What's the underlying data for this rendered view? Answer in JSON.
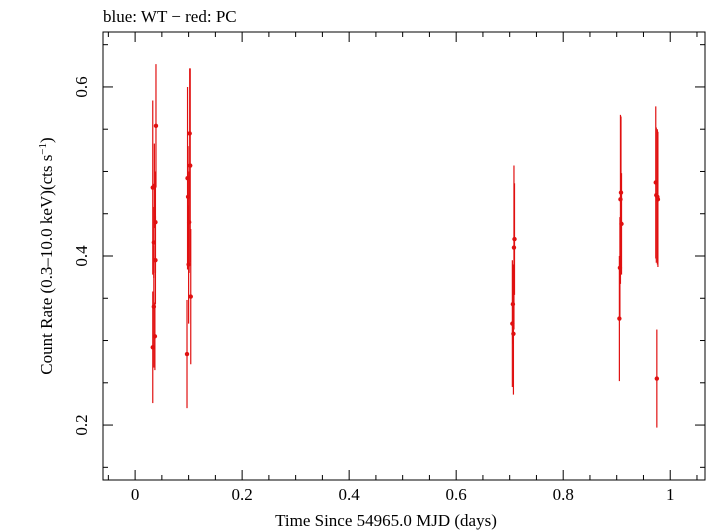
{
  "chart_data": {
    "type": "scatter",
    "title": "blue: WT − red: PC",
    "xlabel": "Time Since 54965.0 MJD (days)",
    "ylabel_main": "Count Rate (0.3–10.0 keV)(cts s",
    "ylabel_sup": "−1",
    "ylabel_close": ")",
    "xlim": [
      -0.06,
      1.065
    ],
    "ylim": [
      0.135,
      0.665
    ],
    "x_ticks": [
      0,
      0.2,
      0.4,
      0.6,
      0.8,
      1
    ],
    "x_tick_labels": [
      "0",
      "0.2",
      "0.4",
      "0.6",
      "0.8",
      "1"
    ],
    "y_ticks": [
      0.2,
      0.4,
      0.6
    ],
    "y_tick_labels": [
      "0.2",
      "0.4",
      "0.6"
    ],
    "x_minor_step": 0.05,
    "y_minor_step": 0.05,
    "grid": false,
    "colors": {
      "WT": "#0000ff",
      "PC": "#e01010",
      "axes": "#000000"
    },
    "series": [
      {
        "name": "PC",
        "points": [
          {
            "x": 0.033,
            "y": 0.292,
            "yerr": 0.066
          },
          {
            "x": 0.033,
            "y": 0.481,
            "yerr": 0.103
          },
          {
            "x": 0.035,
            "y": 0.34,
            "yerr": 0.072
          },
          {
            "x": 0.035,
            "y": 0.416,
            "yerr": 0.042
          },
          {
            "x": 0.036,
            "y": 0.483,
            "yerr": 0.05
          },
          {
            "x": 0.037,
            "y": 0.305,
            "yerr": 0.04
          },
          {
            "x": 0.038,
            "y": 0.44,
            "yerr": 0.06
          },
          {
            "x": 0.038,
            "y": 0.395,
            "yerr": 0.052
          },
          {
            "x": 0.039,
            "y": 0.554,
            "yerr": 0.073
          },
          {
            "x": 0.097,
            "y": 0.284,
            "yerr": 0.064
          },
          {
            "x": 0.098,
            "y": 0.492,
            "yerr": 0.108
          },
          {
            "x": 0.099,
            "y": 0.47,
            "yerr": 0.06
          },
          {
            "x": 0.1,
            "y": 0.39,
            "yerr": 0.07
          },
          {
            "x": 0.101,
            "y": 0.44,
            "yerr": 0.06
          },
          {
            "x": 0.102,
            "y": 0.545,
            "yerr": 0.077
          },
          {
            "x": 0.103,
            "y": 0.507,
            "yerr": 0.115
          },
          {
            "x": 0.104,
            "y": 0.352,
            "yerr": 0.08
          },
          {
            "x": 0.705,
            "y": 0.32,
            "yerr": 0.075
          },
          {
            "x": 0.706,
            "y": 0.343,
            "yerr": 0.047
          },
          {
            "x": 0.707,
            "y": 0.308,
            "yerr": 0.072
          },
          {
            "x": 0.708,
            "y": 0.41,
            "yerr": 0.097
          },
          {
            "x": 0.709,
            "y": 0.42,
            "yerr": 0.066
          },
          {
            "x": 0.905,
            "y": 0.326,
            "yerr": 0.074
          },
          {
            "x": 0.906,
            "y": 0.386,
            "yerr": 0.06
          },
          {
            "x": 0.907,
            "y": 0.467,
            "yerr": 0.1
          },
          {
            "x": 0.908,
            "y": 0.475,
            "yerr": 0.09
          },
          {
            "x": 0.909,
            "y": 0.438,
            "yerr": 0.06
          },
          {
            "x": 0.973,
            "y": 0.487,
            "yerr": 0.09
          },
          {
            "x": 0.974,
            "y": 0.472,
            "yerr": 0.08
          },
          {
            "x": 0.975,
            "y": 0.255,
            "yerr": 0.058
          },
          {
            "x": 0.976,
            "y": 0.47,
            "yerr": 0.08
          },
          {
            "x": 0.977,
            "y": 0.467,
            "yerr": 0.08
          }
        ]
      }
    ]
  }
}
